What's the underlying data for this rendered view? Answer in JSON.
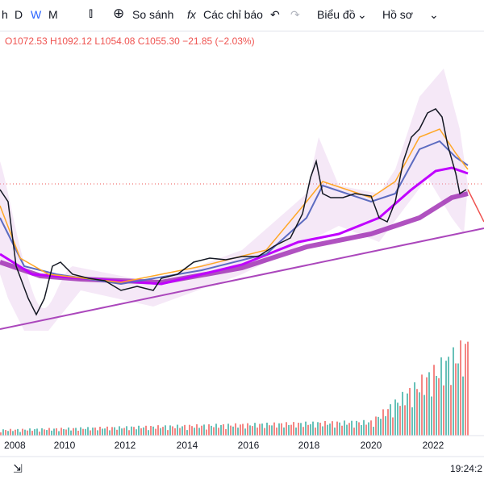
{
  "toolbar": {
    "intervals": [
      "h",
      "D",
      "W",
      "M"
    ],
    "compare": "So sánh",
    "indicators": "Các chỉ báo",
    "chart_menu": "Biểu đồ",
    "profile_menu": "Hồ sơ"
  },
  "legend": {
    "ohlc": "O1072.53 H1092.12 L1054.08 C1055.30 −21.85 (−2.03%)"
  },
  "time_axis": {
    "labels": [
      "2008",
      "2010",
      "2012",
      "2014",
      "2016",
      "2018",
      "2020",
      "2022"
    ]
  },
  "status": {
    "clock": "19:24:2"
  }
}
